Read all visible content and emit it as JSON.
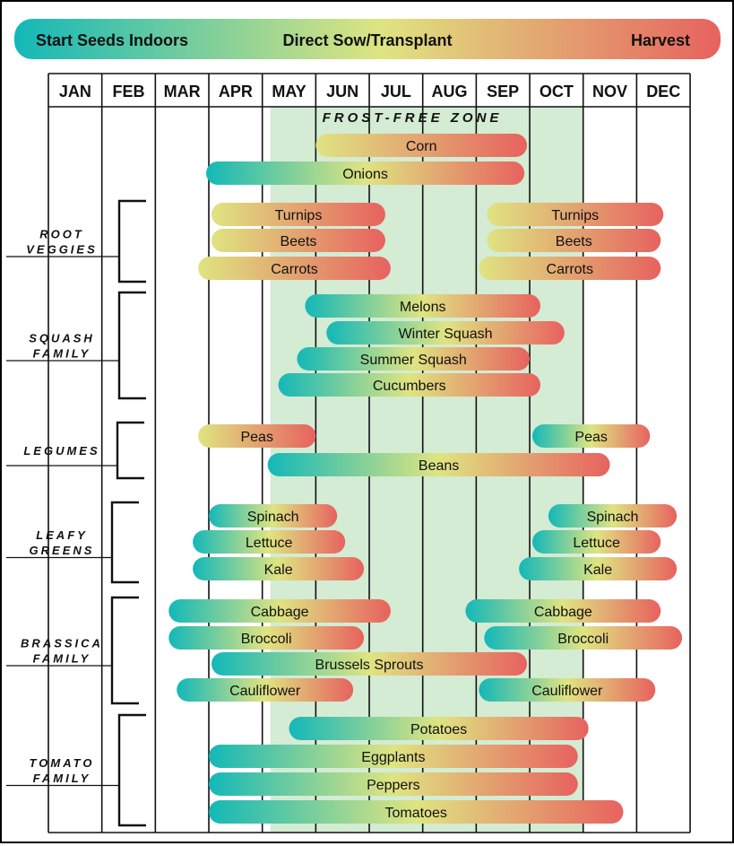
{
  "legend": {
    "start": "Start Seeds Indoors",
    "direct": "Direct Sow/Transplant",
    "harvest": "Harvest"
  },
  "zone_label": "FROST-FREE ZONE",
  "colors": {
    "teal": "#13b8b8",
    "yellow": "#dfe481",
    "salmon": "#e7625f",
    "frost_zone": "#d4ebd4"
  },
  "chart_data": {
    "type": "gantt",
    "months": [
      "JAN",
      "FEB",
      "MAR",
      "APR",
      "MAY",
      "JUN",
      "JUL",
      "AUG",
      "SEP",
      "OCT",
      "NOV",
      "DEC"
    ],
    "frost_free_zone": [
      4.15,
      10.0
    ],
    "groups": [
      {
        "label": [
          "ROOT",
          "VEGGIES"
        ],
        "first_row": 2,
        "last_row": 4
      },
      {
        "label": [
          "SQUASH",
          "FAMILY"
        ],
        "first_row": 5,
        "last_row": 8
      },
      {
        "label": [
          "LEGUMES"
        ],
        "first_row": 9,
        "last_row": 10
      },
      {
        "label": [
          "LEAFY",
          "GREENS"
        ],
        "first_row": 11,
        "last_row": 13
      },
      {
        "label": [
          "BRASSICA",
          "FAMILY"
        ],
        "first_row": 14,
        "last_row": 17
      },
      {
        "label": [
          "TOMATO",
          "FAMILY"
        ],
        "first_row": 18,
        "last_row": 21
      }
    ],
    "rows": [
      {
        "bars": [
          {
            "name": "Corn",
            "start": 5.0,
            "end": 8.95,
            "stages": "direct-harvest"
          }
        ]
      },
      {
        "bars": [
          {
            "name": "Onions",
            "start": 2.95,
            "end": 8.9,
            "stages": "full"
          }
        ]
      },
      {
        "bars": [
          {
            "name": "Turnips",
            "start": 3.05,
            "end": 6.3,
            "stages": "direct-harvest"
          },
          {
            "name": "Turnips",
            "start": 8.2,
            "end": 11.5,
            "stages": "direct-harvest"
          }
        ]
      },
      {
        "bars": [
          {
            "name": "Beets",
            "start": 3.05,
            "end": 6.3,
            "stages": "direct-harvest"
          },
          {
            "name": "Beets",
            "start": 8.2,
            "end": 11.45,
            "stages": "direct-harvest"
          }
        ]
      },
      {
        "bars": [
          {
            "name": "Carrots",
            "start": 2.8,
            "end": 6.4,
            "stages": "direct-harvest"
          },
          {
            "name": "Carrots",
            "start": 8.05,
            "end": 11.45,
            "stages": "direct-harvest"
          }
        ]
      },
      {
        "bars": [
          {
            "name": "Melons",
            "start": 4.8,
            "end": 9.2,
            "stages": "full"
          }
        ]
      },
      {
        "bars": [
          {
            "name": "Winter Squash",
            "start": 5.2,
            "end": 9.65,
            "stages": "full"
          }
        ]
      },
      {
        "bars": [
          {
            "name": "Summer Squash",
            "start": 4.65,
            "end": 9.0,
            "stages": "full"
          }
        ]
      },
      {
        "bars": [
          {
            "name": "Cucumbers",
            "start": 4.3,
            "end": 9.2,
            "stages": "full"
          }
        ]
      },
      {
        "bars": [
          {
            "name": "Peas",
            "start": 2.8,
            "end": 5.0,
            "stages": "direct-harvest"
          },
          {
            "name": "Peas",
            "start": 9.05,
            "end": 11.25,
            "stages": "full"
          }
        ]
      },
      {
        "bars": [
          {
            "name": "Beans",
            "start": 4.1,
            "end": 10.5,
            "stages": "full"
          }
        ]
      },
      {
        "bars": [
          {
            "name": "Spinach",
            "start": 3.0,
            "end": 5.4,
            "stages": "full"
          },
          {
            "name": "Spinach",
            "start": 9.35,
            "end": 11.75,
            "stages": "full"
          }
        ]
      },
      {
        "bars": [
          {
            "name": "Lettuce",
            "start": 2.7,
            "end": 5.55,
            "stages": "full"
          },
          {
            "name": "Lettuce",
            "start": 9.05,
            "end": 11.45,
            "stages": "full"
          }
        ]
      },
      {
        "bars": [
          {
            "name": "Kale",
            "start": 2.7,
            "end": 5.9,
            "stages": "full"
          },
          {
            "name": "Kale",
            "start": 8.8,
            "end": 11.75,
            "stages": "full"
          }
        ]
      },
      {
        "bars": [
          {
            "name": "Cabbage",
            "start": 2.25,
            "end": 6.4,
            "stages": "full"
          },
          {
            "name": "Cabbage",
            "start": 7.8,
            "end": 11.45,
            "stages": "full"
          }
        ]
      },
      {
        "bars": [
          {
            "name": "Broccoli",
            "start": 2.25,
            "end": 5.9,
            "stages": "full"
          },
          {
            "name": "Broccoli",
            "start": 8.15,
            "end": 11.85,
            "stages": "full"
          }
        ]
      },
      {
        "bars": [
          {
            "name": "Brussels Sprouts",
            "start": 3.05,
            "end": 8.95,
            "stages": "full"
          }
        ]
      },
      {
        "bars": [
          {
            "name": "Cauliflower",
            "start": 2.4,
            "end": 5.7,
            "stages": "full"
          },
          {
            "name": "Cauliflower",
            "start": 8.05,
            "end": 11.35,
            "stages": "full"
          }
        ]
      },
      {
        "bars": [
          {
            "name": "Potatoes",
            "start": 4.5,
            "end": 10.1,
            "stages": "full"
          }
        ]
      },
      {
        "bars": [
          {
            "name": "Eggplants",
            "start": 3.0,
            "end": 9.9,
            "stages": "full"
          }
        ]
      },
      {
        "bars": [
          {
            "name": "Peppers",
            "start": 3.0,
            "end": 9.9,
            "stages": "full"
          }
        ]
      },
      {
        "bars": [
          {
            "name": "Tomatoes",
            "start": 3.0,
            "end": 10.75,
            "stages": "full"
          }
        ]
      }
    ]
  }
}
